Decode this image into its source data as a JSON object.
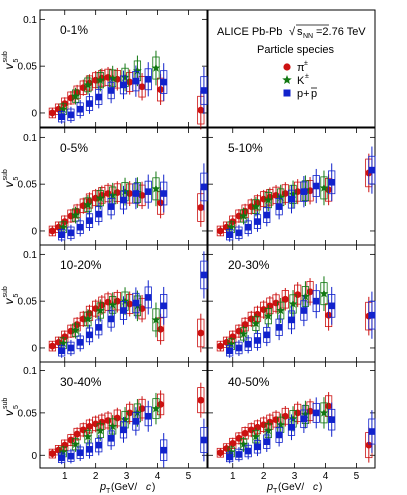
{
  "figure": {
    "collaboration": "ALICE Pb-Pb",
    "energy_prefix": "s",
    "energy_subscript": "NN",
    "energy_value": "=2.76 TeV",
    "legend_title": "Particle species",
    "xlabel_p": "p",
    "xlabel_sub": "T",
    "xlabel_unit": " (GeV/",
    "xlabel_c": "c",
    "xlabel_close": ")",
    "ylabel_v": "v",
    "ylabel_sub": "5",
    "ylabel_sup": "sub"
  },
  "colors": {
    "pion": "#cc1111",
    "kaon": "#117711",
    "proton": "#1122cc",
    "axis": "#000000"
  },
  "chart_data": {
    "type": "scatter",
    "xlim": [
      0.2,
      5.6
    ],
    "ylim": [
      -0.015,
      0.11
    ],
    "x_ticks": [
      "1",
      "2",
      "3",
      "4",
      "5"
    ],
    "y_ticks": [
      "0",
      "0.05",
      "0.1"
    ],
    "series_labels": {
      "pion": {
        "base": "π",
        "sup": "±",
        "marker": "circle"
      },
      "kaon": {
        "base": "K",
        "sup": "±",
        "marker": "star"
      },
      "proton": {
        "base": "p+",
        "over": "p",
        "marker": "square"
      }
    },
    "panels": [
      {
        "label": "0-1%",
        "pion": [
          [
            0.6,
            0.0
          ],
          [
            0.8,
            0.004
          ],
          [
            1.0,
            0.01
          ],
          [
            1.2,
            0.016
          ],
          [
            1.4,
            0.022
          ],
          [
            1.6,
            0.027
          ],
          [
            1.8,
            0.032
          ],
          [
            2.0,
            0.035
          ],
          [
            2.2,
            0.037
          ],
          [
            2.4,
            0.038
          ],
          [
            2.7,
            0.036
          ],
          [
            3.1,
            0.033
          ],
          [
            3.5,
            0.028
          ],
          [
            4.1,
            0.025
          ],
          [
            5.4,
            0.003
          ]
        ],
        "kaon": [
          [
            0.9,
            0.004
          ],
          [
            1.3,
            0.018
          ],
          [
            1.7,
            0.03
          ],
          [
            2.1,
            0.035
          ],
          [
            2.5,
            0.037
          ],
          [
            2.9,
            0.038
          ],
          [
            3.3,
            0.045
          ],
          [
            3.9,
            0.048
          ]
        ],
        "proton": [
          [
            0.8,
            -0.004
          ],
          [
            1.1,
            -0.002
          ],
          [
            1.4,
            0.004
          ],
          [
            1.7,
            0.01
          ],
          [
            2.0,
            0.017
          ],
          [
            2.4,
            0.024
          ],
          [
            2.8,
            0.03
          ],
          [
            3.2,
            0.034
          ],
          [
            3.6,
            0.036
          ],
          [
            4.1,
            0.033
          ],
          [
            5.4,
            0.024
          ]
        ]
      },
      {
        "label": "0-5%",
        "pion": [
          [
            0.6,
            0.0
          ],
          [
            0.8,
            0.004
          ],
          [
            1.0,
            0.01
          ],
          [
            1.2,
            0.016
          ],
          [
            1.4,
            0.021
          ],
          [
            1.6,
            0.027
          ],
          [
            1.8,
            0.032
          ],
          [
            2.0,
            0.035
          ],
          [
            2.2,
            0.038
          ],
          [
            2.4,
            0.04
          ],
          [
            2.7,
            0.041
          ],
          [
            3.1,
            0.04
          ],
          [
            3.5,
            0.038
          ],
          [
            4.1,
            0.03
          ],
          [
            5.4,
            0.025
          ]
        ],
        "kaon": [
          [
            0.9,
            0.004
          ],
          [
            1.3,
            0.017
          ],
          [
            1.7,
            0.028
          ],
          [
            2.1,
            0.035
          ],
          [
            2.5,
            0.038
          ],
          [
            2.9,
            0.042
          ],
          [
            3.3,
            0.041
          ],
          [
            3.9,
            0.045
          ]
        ],
        "proton": [
          [
            0.8,
            -0.004
          ],
          [
            1.1,
            -0.002
          ],
          [
            1.4,
            0.004
          ],
          [
            1.7,
            0.011
          ],
          [
            2.0,
            0.018
          ],
          [
            2.4,
            0.026
          ],
          [
            2.8,
            0.033
          ],
          [
            3.2,
            0.04
          ],
          [
            3.6,
            0.042
          ],
          [
            4.1,
            0.04
          ],
          [
            5.4,
            0.047
          ]
        ]
      },
      {
        "label": "5-10%",
        "pion": [
          [
            0.6,
            0.0
          ],
          [
            0.8,
            0.004
          ],
          [
            1.0,
            0.01
          ],
          [
            1.2,
            0.016
          ],
          [
            1.4,
            0.021
          ],
          [
            1.6,
            0.026
          ],
          [
            1.8,
            0.03
          ],
          [
            2.0,
            0.034
          ],
          [
            2.2,
            0.036
          ],
          [
            2.4,
            0.038
          ],
          [
            2.7,
            0.04
          ],
          [
            3.1,
            0.042
          ],
          [
            3.5,
            0.043
          ],
          [
            4.1,
            0.044
          ],
          [
            5.4,
            0.062
          ]
        ],
        "kaon": [
          [
            0.9,
            0.004
          ],
          [
            1.3,
            0.016
          ],
          [
            1.7,
            0.026
          ],
          [
            2.1,
            0.033
          ],
          [
            2.5,
            0.036
          ],
          [
            2.9,
            0.039
          ],
          [
            3.3,
            0.043
          ],
          [
            3.9,
            0.046
          ]
        ],
        "proton": [
          [
            0.8,
            -0.004
          ],
          [
            1.1,
            -0.002
          ],
          [
            1.4,
            0.004
          ],
          [
            1.7,
            0.01
          ],
          [
            2.0,
            0.017
          ],
          [
            2.4,
            0.026
          ],
          [
            2.8,
            0.034
          ],
          [
            3.2,
            0.042
          ],
          [
            3.6,
            0.048
          ],
          [
            4.1,
            0.052
          ],
          [
            5.4,
            0.065
          ]
        ]
      },
      {
        "label": "10-20%",
        "pion": [
          [
            0.6,
            0.002
          ],
          [
            0.8,
            0.006
          ],
          [
            1.0,
            0.012
          ],
          [
            1.2,
            0.018
          ],
          [
            1.4,
            0.025
          ],
          [
            1.6,
            0.031
          ],
          [
            1.8,
            0.037
          ],
          [
            2.0,
            0.042
          ],
          [
            2.2,
            0.046
          ],
          [
            2.4,
            0.049
          ],
          [
            2.7,
            0.05
          ],
          [
            3.1,
            0.047
          ],
          [
            3.5,
            0.042
          ],
          [
            4.1,
            0.02
          ],
          [
            5.4,
            0.016
          ]
        ],
        "kaon": [
          [
            0.9,
            0.005
          ],
          [
            1.3,
            0.019
          ],
          [
            1.7,
            0.031
          ],
          [
            2.1,
            0.04
          ],
          [
            2.5,
            0.046
          ],
          [
            2.9,
            0.05
          ],
          [
            3.3,
            0.045
          ],
          [
            3.9,
            0.03
          ]
        ],
        "proton": [
          [
            0.8,
            -0.003
          ],
          [
            1.1,
            0.0
          ],
          [
            1.4,
            0.006
          ],
          [
            1.7,
            0.014
          ],
          [
            2.0,
            0.022
          ],
          [
            2.4,
            0.031
          ],
          [
            2.8,
            0.04
          ],
          [
            3.2,
            0.048
          ],
          [
            3.6,
            0.054
          ],
          [
            4.1,
            0.045
          ],
          [
            5.4,
            0.078
          ]
        ]
      },
      {
        "label": "20-30%",
        "pion": [
          [
            0.6,
            0.002
          ],
          [
            0.8,
            0.006
          ],
          [
            1.0,
            0.012
          ],
          [
            1.2,
            0.018
          ],
          [
            1.4,
            0.025
          ],
          [
            1.6,
            0.031
          ],
          [
            1.8,
            0.036
          ],
          [
            2.0,
            0.041
          ],
          [
            2.2,
            0.045
          ],
          [
            2.4,
            0.048
          ],
          [
            2.7,
            0.052
          ],
          [
            3.1,
            0.057
          ],
          [
            3.5,
            0.06
          ],
          [
            4.1,
            0.035
          ],
          [
            5.4,
            0.034
          ]
        ],
        "kaon": [
          [
            0.9,
            0.004
          ],
          [
            1.3,
            0.015
          ],
          [
            1.7,
            0.026
          ],
          [
            2.1,
            0.034
          ],
          [
            2.5,
            0.04
          ],
          [
            2.9,
            0.047
          ],
          [
            3.3,
            0.055
          ],
          [
            3.9,
            0.058
          ]
        ],
        "proton": [
          [
            0.8,
            -0.003
          ],
          [
            1.1,
            0.0
          ],
          [
            1.4,
            0.004
          ],
          [
            1.7,
            0.008
          ],
          [
            2.0,
            0.014
          ],
          [
            2.4,
            0.022
          ],
          [
            2.8,
            0.03
          ],
          [
            3.2,
            0.04
          ],
          [
            3.6,
            0.05
          ],
          [
            4.1,
            0.045
          ],
          [
            5.4,
            0.035
          ]
        ]
      },
      {
        "label": "30-40%",
        "pion": [
          [
            0.6,
            0.002
          ],
          [
            0.8,
            0.006
          ],
          [
            1.0,
            0.012
          ],
          [
            1.2,
            0.018
          ],
          [
            1.4,
            0.025
          ],
          [
            1.6,
            0.03
          ],
          [
            1.8,
            0.034
          ],
          [
            2.0,
            0.037
          ],
          [
            2.2,
            0.039
          ],
          [
            2.4,
            0.041
          ],
          [
            2.7,
            0.044
          ],
          [
            3.1,
            0.05
          ],
          [
            3.5,
            0.055
          ],
          [
            4.1,
            0.06
          ],
          [
            5.4,
            0.065
          ]
        ],
        "kaon": [
          [
            0.9,
            0.004
          ],
          [
            1.3,
            0.013
          ],
          [
            1.7,
            0.022
          ],
          [
            2.1,
            0.029
          ],
          [
            2.5,
            0.034
          ],
          [
            2.9,
            0.042
          ],
          [
            3.3,
            0.05
          ],
          [
            3.9,
            0.055
          ]
        ],
        "proton": [
          [
            0.8,
            -0.003
          ],
          [
            1.1,
            -0.001
          ],
          [
            1.4,
            0.003
          ],
          [
            1.7,
            0.007
          ],
          [
            2.0,
            0.012
          ],
          [
            2.4,
            0.02
          ],
          [
            2.8,
            0.03
          ],
          [
            3.2,
            0.04
          ],
          [
            3.6,
            0.046
          ],
          [
            4.1,
            0.006
          ],
          [
            5.4,
            0.018
          ]
        ]
      },
      {
        "label": "40-50%",
        "pion": [
          [
            0.6,
            0.003
          ],
          [
            0.8,
            0.008
          ],
          [
            1.0,
            0.014
          ],
          [
            1.2,
            0.02
          ],
          [
            1.4,
            0.026
          ],
          [
            1.6,
            0.03
          ],
          [
            1.8,
            0.033
          ],
          [
            2.0,
            0.036
          ],
          [
            2.2,
            0.039
          ],
          [
            2.4,
            0.042
          ],
          [
            2.7,
            0.046
          ],
          [
            3.1,
            0.05
          ],
          [
            3.5,
            0.052
          ],
          [
            4.1,
            0.058
          ],
          [
            5.4,
            0.012
          ]
        ],
        "kaon": [
          [
            0.9,
            0.004
          ],
          [
            1.3,
            0.013
          ],
          [
            1.7,
            0.022
          ],
          [
            2.1,
            0.029
          ],
          [
            2.5,
            0.036
          ],
          [
            2.9,
            0.043
          ],
          [
            3.3,
            0.048
          ],
          [
            3.9,
            0.05
          ]
        ],
        "proton": [
          [
            0.8,
            -0.002
          ],
          [
            1.1,
            0.001
          ],
          [
            1.4,
            0.005
          ],
          [
            1.7,
            0.01
          ],
          [
            2.0,
            0.016
          ],
          [
            2.4,
            0.024
          ],
          [
            2.8,
            0.033
          ],
          [
            3.2,
            0.043
          ],
          [
            3.6,
            0.05
          ],
          [
            4.1,
            0.042
          ],
          [
            5.4,
            0.028
          ]
        ]
      }
    ]
  }
}
